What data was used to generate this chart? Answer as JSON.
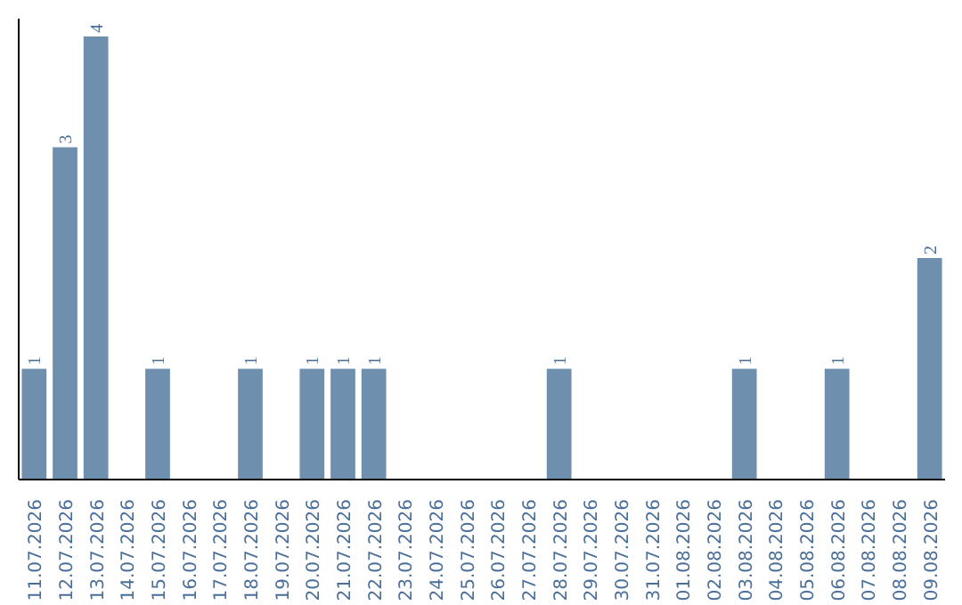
{
  "chart_data": {
    "type": "bar",
    "categories": [
      "11.07.2026",
      "12.07.2026",
      "13.07.2026",
      "14.07.2026",
      "15.07.2026",
      "16.07.2026",
      "17.07.2026",
      "18.07.2026",
      "19.07.2026",
      "20.07.2026",
      "21.07.2026",
      "22.07.2026",
      "23.07.2026",
      "24.07.2026",
      "25.07.2026",
      "26.07.2026",
      "27.07.2026",
      "28.07.2026",
      "29.07.2026",
      "30.07.2026",
      "31.07.2026",
      "01.08.2026",
      "02.08.2026",
      "03.08.2026",
      "04.08.2026",
      "05.08.2026",
      "06.08.2026",
      "07.08.2026",
      "08.08.2026",
      "09.08.2026"
    ],
    "values": [
      1,
      3,
      4,
      0,
      1,
      0,
      0,
      1,
      0,
      1,
      1,
      1,
      0,
      0,
      0,
      0,
      0,
      1,
      0,
      0,
      0,
      0,
      0,
      1,
      0,
      0,
      1,
      0,
      0,
      2
    ],
    "value_labels": [
      "1",
      "3",
      "4",
      null,
      "1",
      null,
      null,
      "1",
      null,
      "1",
      "1",
      "1",
      null,
      null,
      null,
      null,
      null,
      "1",
      null,
      null,
      null,
      null,
      null,
      "1",
      null,
      null,
      "1",
      null,
      null,
      "2"
    ],
    "color": "#6e8fae",
    "tick_labels": "x",
    "grid": false
  }
}
